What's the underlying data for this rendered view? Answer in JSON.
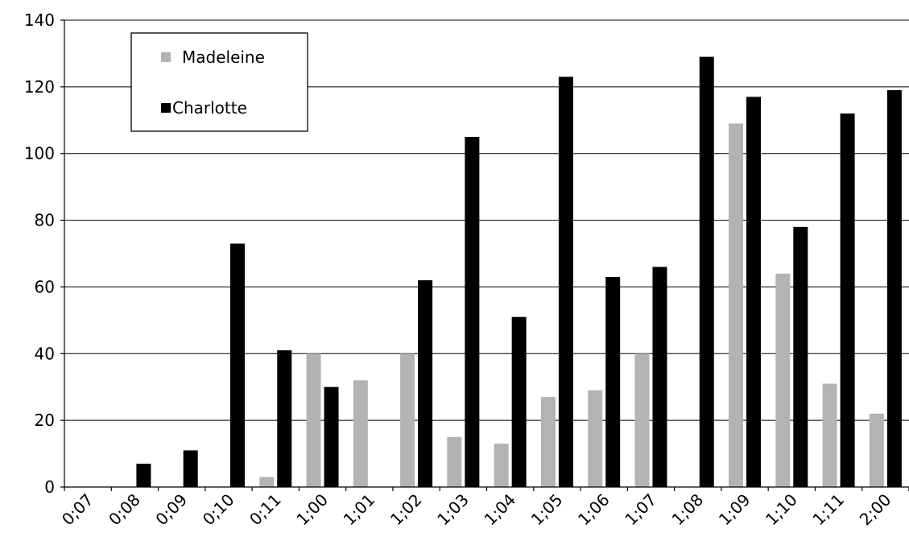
{
  "chart_data": {
    "type": "bar",
    "title": "",
    "xlabel": "",
    "ylabel": "",
    "ylim": [
      0,
      140
    ],
    "yticks": [
      0,
      20,
      40,
      60,
      80,
      100,
      120,
      140
    ],
    "grid": true,
    "legend_position": "top-left",
    "categories": [
      "0;07",
      "0;08",
      "0;09",
      "0;10",
      "0;11",
      "1;00",
      "1;01",
      "1;02",
      "1;03",
      "1;04",
      "1;05",
      "1;06",
      "1;07",
      "1;08",
      "1;09",
      "1;10",
      "1;11",
      "2;00"
    ],
    "series": [
      {
        "name": "Madeleine",
        "color": "#b3b3b3",
        "values": [
          0,
          0,
          0,
          0,
          3,
          40,
          32,
          40,
          15,
          13,
          27,
          29,
          40,
          0,
          109,
          64,
          31,
          22
        ]
      },
      {
        "name": "Charlotte",
        "color": "#000000",
        "values": [
          0,
          7,
          11,
          73,
          41,
          30,
          0,
          62,
          105,
          51,
          123,
          63,
          66,
          129,
          117,
          78,
          112,
          119
        ]
      }
    ]
  }
}
